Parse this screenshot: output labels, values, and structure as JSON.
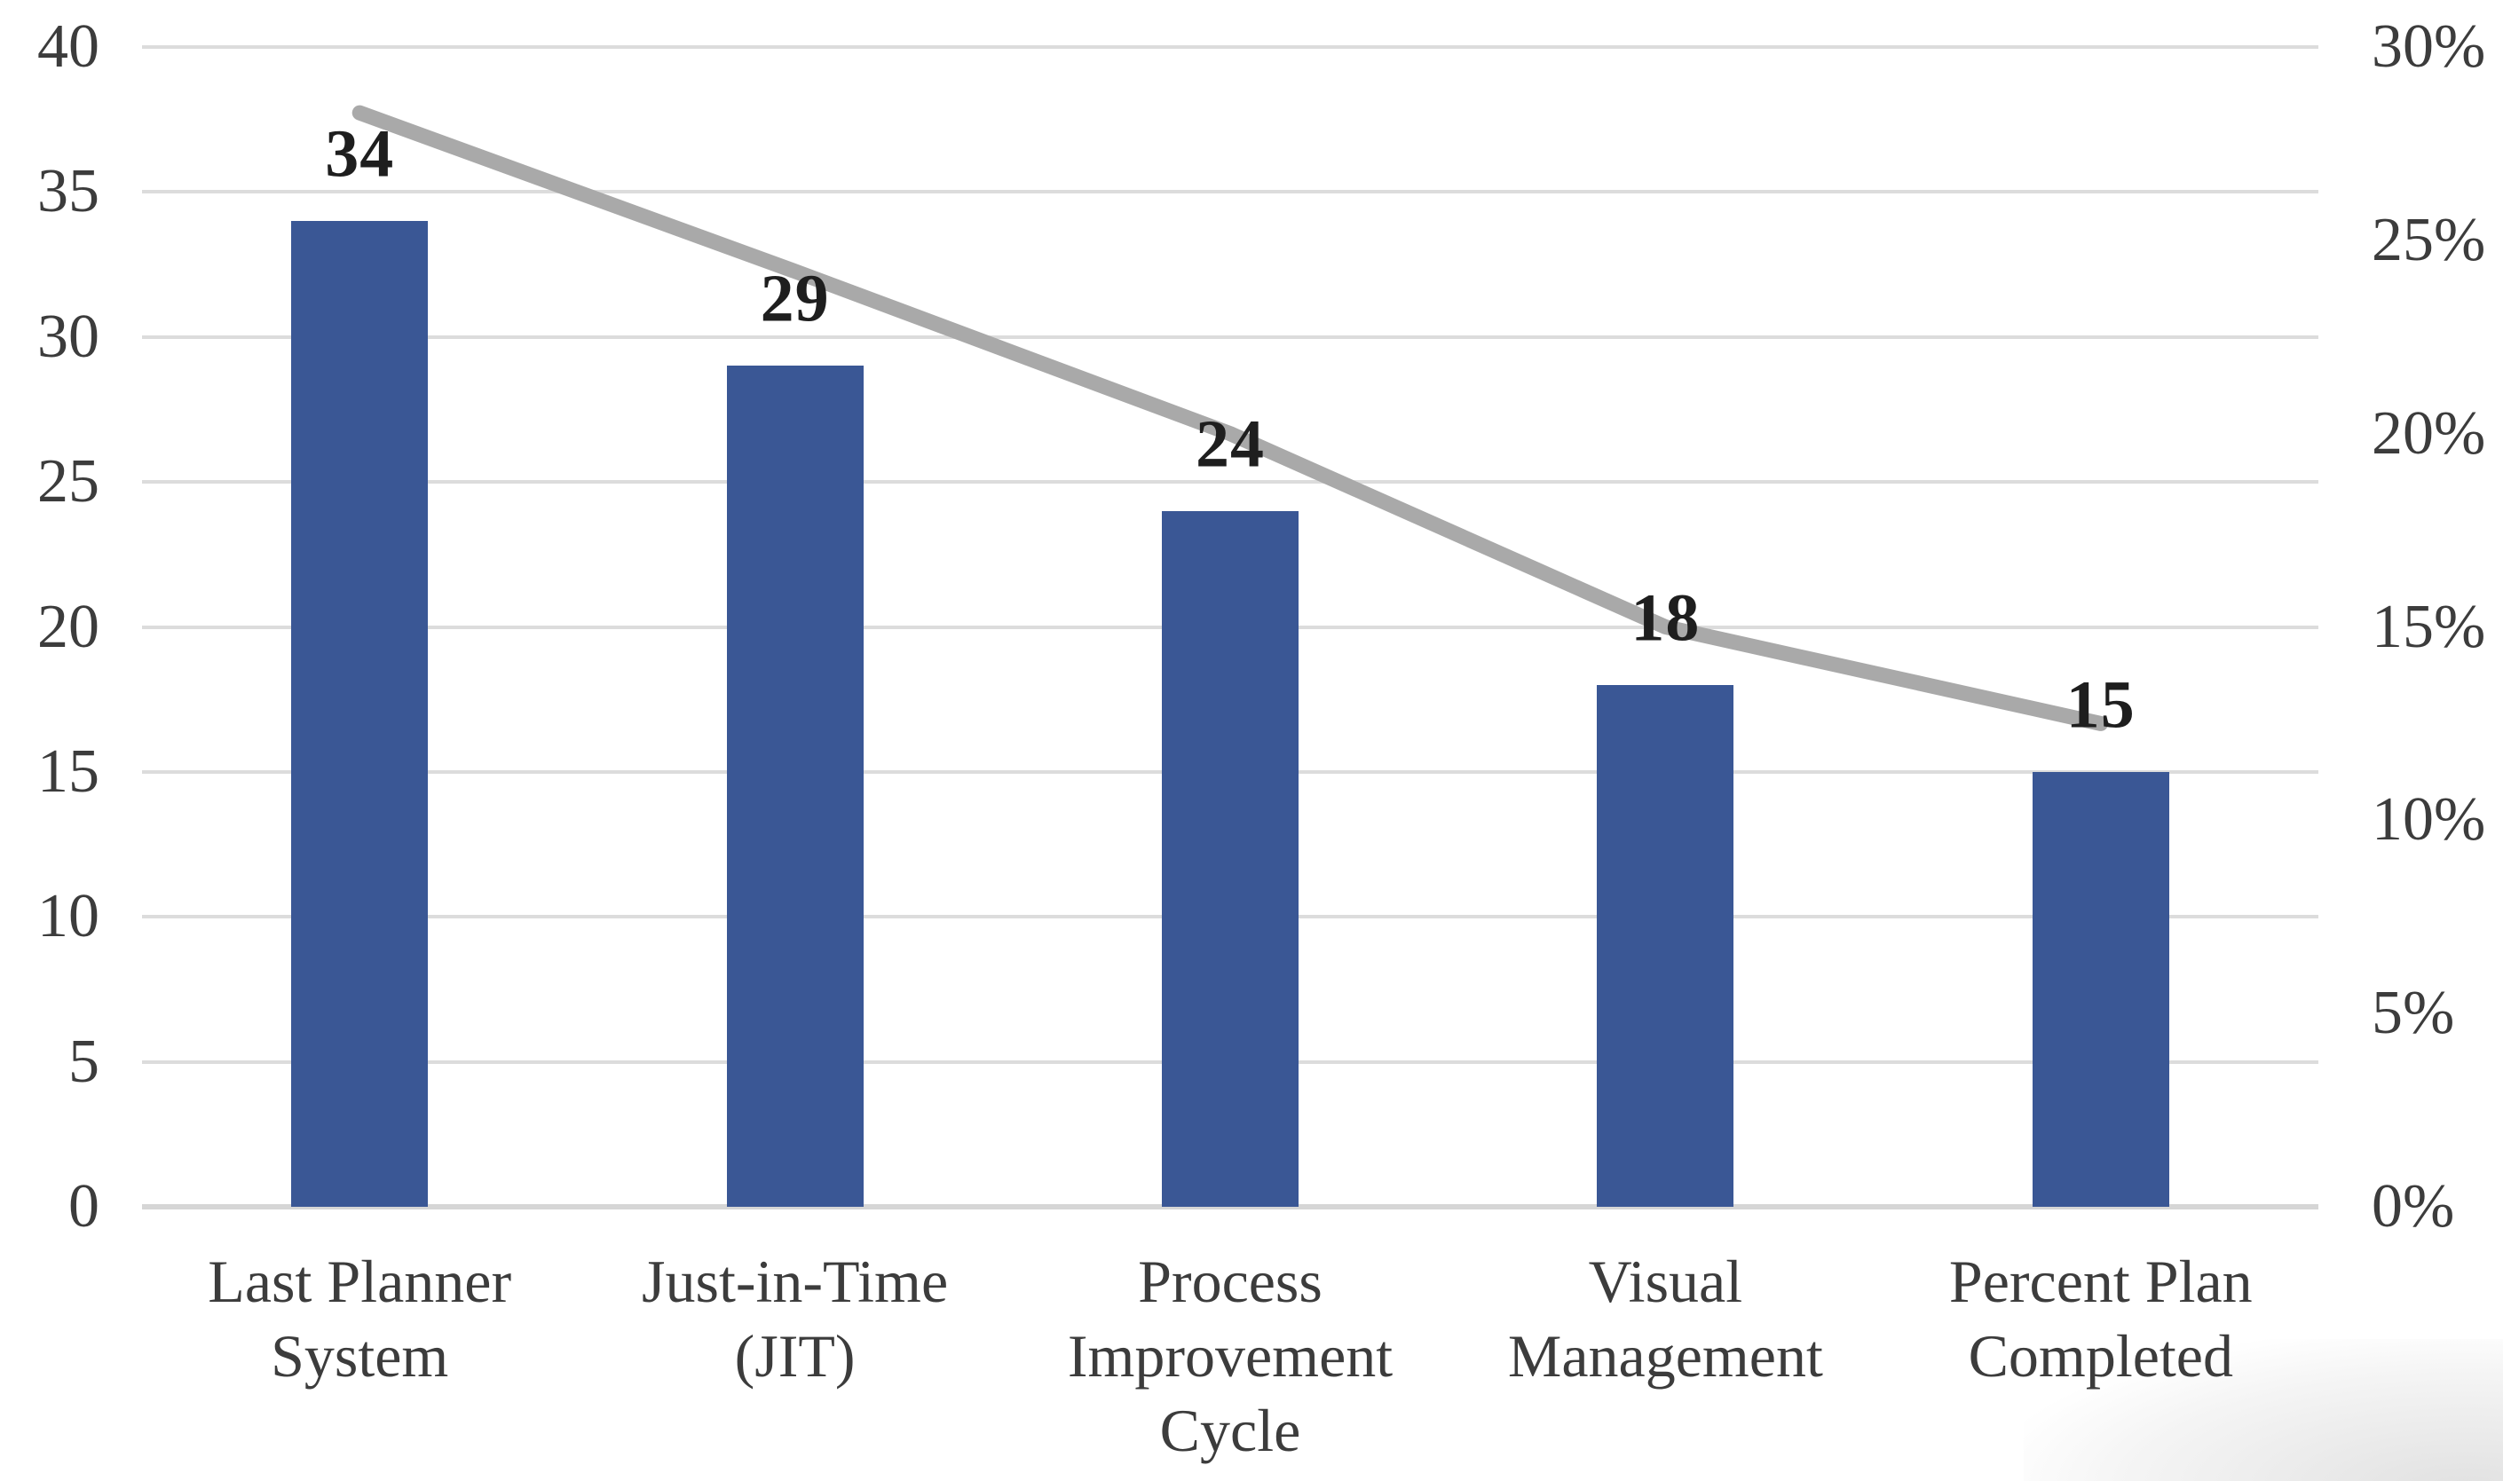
{
  "chart_data": {
    "type": "bar",
    "subtype": "combo-bar-line",
    "title": "",
    "legend": false,
    "grid": true,
    "categories": [
      "Last Planner System",
      "Just-in-Time (JIT)",
      "Process Improvement Cycle",
      "Visual Management",
      "Percent Plan Completed"
    ],
    "category_lines": [
      [
        "Last Planner",
        "System"
      ],
      [
        "Just-in-Time",
        "(JIT)"
      ],
      [
        "Process",
        "Improvement",
        "Cycle"
      ],
      [
        "Visual",
        "Management"
      ],
      [
        "Percent Plan",
        "Completed"
      ]
    ],
    "series": [
      {
        "id": "bars",
        "type": "bar",
        "axis": "left",
        "values": [
          34,
          29,
          24,
          18,
          15
        ],
        "data_labels": [
          "34",
          "29",
          "24",
          "18",
          "15"
        ]
      },
      {
        "id": "line",
        "type": "line",
        "axis": "right",
        "values_pct": [
          28.3,
          24.2,
          20.0,
          15.0,
          12.5
        ]
      }
    ],
    "left_axis": {
      "min": 0,
      "max": 40,
      "step": 5,
      "ticks": [
        "40",
        "35",
        "30",
        "25",
        "20",
        "15",
        "10",
        "5",
        "0"
      ]
    },
    "right_axis": {
      "min": 0,
      "max": 30,
      "step": 5,
      "ticks": [
        "30%",
        "25%",
        "20%",
        "15%",
        "10%",
        "5%",
        "0%"
      ]
    },
    "colors": {
      "bar": "#3a5795",
      "line": "#a9a9a9",
      "gridline": "#dcdcdc",
      "baseline": "#d6d6d6",
      "tick_text": "#3c3c3c",
      "category_text": "#3c3c3c",
      "data_label_text": "#1e1e1e",
      "background": "#ffffff"
    }
  }
}
